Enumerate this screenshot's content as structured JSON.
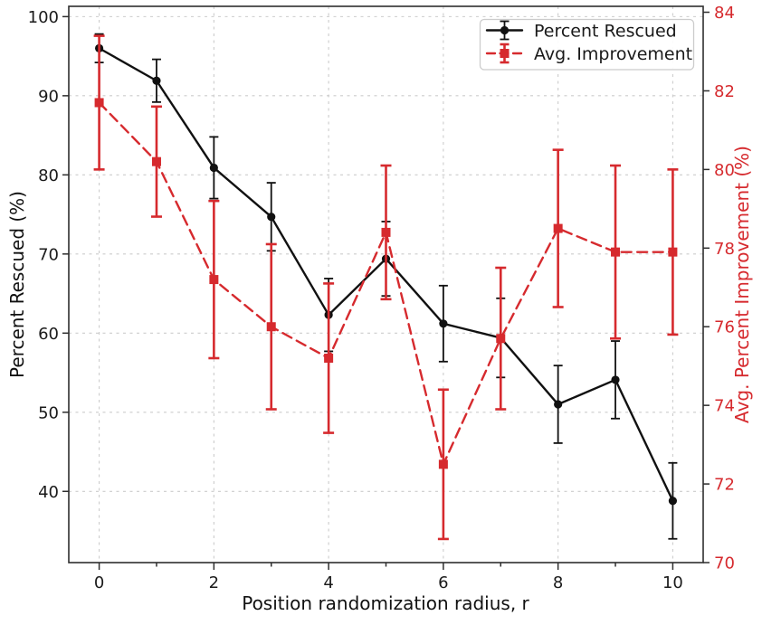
{
  "colors": {
    "series_black": "#111111",
    "series_red": "#d62a2e",
    "grid": "#cccccc",
    "spine": "#2e2e2e",
    "legend_border": "#cccccc",
    "background": "#ffffff"
  },
  "chart_data": {
    "type": "line",
    "title": "",
    "xlabel": "Position randomization radius, r",
    "ylabel_left": "Percent Rescued (%)",
    "ylabel_right": "Avg. Percent Improvement (%)",
    "grid": true,
    "legend_position": "upper right",
    "x": [
      0,
      1,
      2,
      3,
      4,
      5,
      6,
      7,
      8,
      9,
      10
    ],
    "series": [
      {
        "name": "Percent Rescued",
        "axis": "left",
        "color": "#111111",
        "marker": "circle",
        "linestyle": "solid",
        "values": [
          96.0,
          91.9,
          80.9,
          74.7,
          62.3,
          69.4,
          61.2,
          59.4,
          51.0,
          54.1,
          38.8
        ],
        "errors": [
          1.8,
          2.7,
          3.9,
          4.3,
          4.6,
          4.7,
          4.8,
          5.0,
          4.9,
          4.9,
          4.8
        ]
      },
      {
        "name": "Avg. Improvement",
        "axis": "right",
        "color": "#d62a2e",
        "marker": "square",
        "linestyle": "dashed",
        "values": [
          81.7,
          80.2,
          77.2,
          76.0,
          75.2,
          78.4,
          72.5,
          75.7,
          78.5,
          77.9,
          77.9
        ],
        "errors": [
          1.7,
          1.4,
          2.0,
          2.1,
          1.9,
          1.7,
          1.9,
          1.8,
          2.0,
          2.2,
          2.1
        ]
      }
    ],
    "axes": {
      "x": {
        "ticks": [
          0,
          2,
          4,
          6,
          8,
          10
        ],
        "minor_ticks": [
          1,
          3,
          5,
          7,
          9
        ],
        "lim": [
          -0.53,
          10.53
        ]
      },
      "left": {
        "ticks": [
          40,
          50,
          60,
          70,
          80,
          90,
          100
        ],
        "lim": [
          31.0,
          101.3
        ]
      },
      "right": {
        "ticks": [
          70,
          72,
          74,
          76,
          78,
          80,
          82,
          84
        ],
        "lim": [
          70.0,
          84.15
        ]
      }
    }
  }
}
